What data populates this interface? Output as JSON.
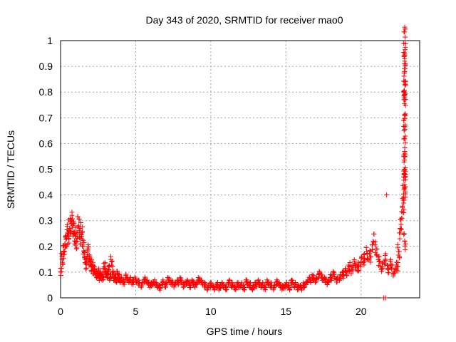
{
  "chart_data": {
    "type": "scatter",
    "title": "Day 343 of 2020, SRMTID for receiver mao0",
    "xlabel": "GPS time / hours",
    "ylabel": "SRMTID / TECUs",
    "xlim": [
      0,
      23.9
    ],
    "ylim": [
      0,
      1
    ],
    "x_ticks": [
      "0",
      "5",
      "10",
      "15",
      "20"
    ],
    "x_tick_values": [
      0,
      5,
      10,
      15,
      20
    ],
    "y_ticks": [
      "0",
      "0.1",
      "0.2",
      "0.3",
      "0.4",
      "0.5",
      "0.6",
      "0.7",
      "0.8",
      "0.9",
      "1"
    ],
    "y_tick_values": [
      0,
      0.1,
      0.2,
      0.3,
      0.4,
      0.5,
      0.6,
      0.7,
      0.8,
      0.9,
      1
    ],
    "grid": true,
    "marker": "plus",
    "color": "#ff0000",
    "series": [
      {
        "x": [
          0.0,
          0.1,
          0.2,
          0.3,
          0.4,
          0.5,
          0.6,
          0.7,
          0.8,
          0.9,
          1.0,
          1.1,
          1.2,
          1.3,
          1.4,
          1.5,
          1.6,
          1.7,
          1.8,
          1.9,
          2.0,
          2.1,
          2.2,
          2.3,
          2.4,
          2.5,
          2.6,
          2.7,
          2.8,
          2.9,
          3.0,
          3.1,
          3.2,
          3.3,
          3.4,
          3.5,
          3.6,
          3.7,
          3.8,
          3.9,
          4.0,
          4.2,
          4.4,
          4.6,
          4.8,
          5.0,
          5.2,
          5.4,
          5.6,
          5.8,
          6.0,
          6.2,
          6.4,
          6.6,
          6.8,
          7.0,
          7.2,
          7.4,
          7.6,
          7.8,
          8.0,
          8.2,
          8.4,
          8.6,
          8.8,
          9.0,
          9.2,
          9.4,
          9.6,
          9.8,
          10.0,
          10.2,
          10.4,
          10.6,
          10.8,
          11.0,
          11.2,
          11.4,
          11.6,
          11.8,
          12.0,
          12.2,
          12.4,
          12.6,
          12.8,
          13.0,
          13.2,
          13.4,
          13.6,
          13.8,
          14.0,
          14.2,
          14.4,
          14.6,
          14.8,
          15.0,
          15.2,
          15.4,
          15.6,
          15.8,
          16.0,
          16.2,
          16.4,
          16.6,
          16.8,
          17.0,
          17.2,
          17.4,
          17.6,
          17.8,
          18.0,
          18.2,
          18.4,
          18.6,
          18.8,
          19.0,
          19.2,
          19.4,
          19.6,
          19.8,
          20.0,
          20.2,
          20.4,
          20.6,
          20.8,
          21.0,
          21.2,
          21.4,
          21.6,
          21.8,
          22.0,
          22.2,
          22.4,
          22.5,
          22.6,
          22.7,
          22.8,
          22.9,
          22.9,
          22.9,
          22.9,
          22.9,
          22.9,
          22.9,
          22.9,
          22.9,
          22.9,
          22.9,
          22.9,
          22.9,
          22.9,
          22.9
        ],
        "y": [
          0.1,
          0.15,
          0.18,
          0.21,
          0.23,
          0.25,
          0.27,
          0.29,
          0.28,
          0.26,
          0.24,
          0.22,
          0.28,
          0.27,
          0.24,
          0.2,
          0.16,
          0.13,
          0.18,
          0.15,
          0.14,
          0.12,
          0.11,
          0.1,
          0.09,
          0.1,
          0.08,
          0.09,
          0.08,
          0.12,
          0.1,
          0.09,
          0.11,
          0.08,
          0.14,
          0.09,
          0.08,
          0.07,
          0.09,
          0.08,
          0.07,
          0.06,
          0.08,
          0.07,
          0.06,
          0.07,
          0.06,
          0.05,
          0.07,
          0.06,
          0.05,
          0.06,
          0.05,
          0.04,
          0.06,
          0.05,
          0.07,
          0.06,
          0.05,
          0.06,
          0.07,
          0.05,
          0.06,
          0.05,
          0.06,
          0.05,
          0.07,
          0.06,
          0.05,
          0.04,
          0.05,
          0.04,
          0.05,
          0.04,
          0.05,
          0.04,
          0.06,
          0.05,
          0.04,
          0.05,
          0.05,
          0.04,
          0.06,
          0.05,
          0.04,
          0.05,
          0.06,
          0.05,
          0.04,
          0.06,
          0.05,
          0.04,
          0.06,
          0.05,
          0.04,
          0.05,
          0.04,
          0.06,
          0.05,
          0.04,
          0.04,
          0.05,
          0.06,
          0.07,
          0.08,
          0.07,
          0.09,
          0.08,
          0.07,
          0.06,
          0.08,
          0.09,
          0.07,
          0.08,
          0.09,
          0.1,
          0.12,
          0.11,
          0.13,
          0.12,
          0.14,
          0.15,
          0.17,
          0.16,
          0.22,
          0.19,
          0.14,
          0.12,
          0.15,
          0.11,
          0.13,
          0.1,
          0.12,
          0.18,
          0.27,
          0.31,
          0.38,
          0.22,
          0.43,
          0.44,
          0.48,
          0.5,
          0.55,
          0.62,
          0.71,
          0.77,
          0.79,
          0.84,
          0.88,
          0.91,
          0.92,
          0.93
        ],
        "extra_points": [
          [
            21.5,
            0.0
          ],
          [
            21.6,
            0.0
          ],
          [
            21.7,
            0.4
          ]
        ]
      }
    ]
  }
}
